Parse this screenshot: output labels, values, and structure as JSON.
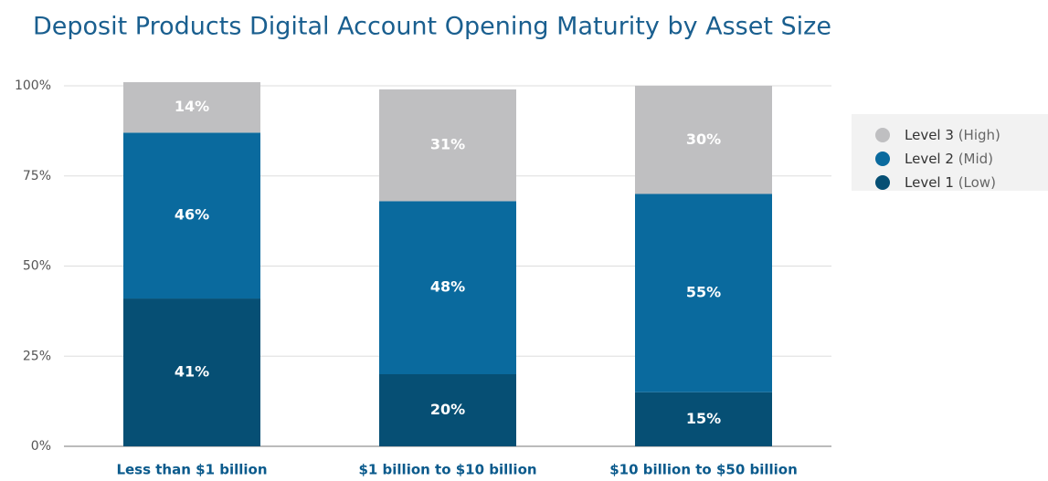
{
  "chart_data": {
    "type": "stacked_bar",
    "title": "Deposit Products Digital Account Opening Maturity by Asset Size",
    "categories": [
      "Less than $1 billion",
      "$1 billion to $10 billion",
      "$10 billion to $50 billion"
    ],
    "series": [
      {
        "name": "Level 1",
        "qualifier": "(Low)",
        "color": "#064f74",
        "values": [
          41,
          20,
          15
        ],
        "value_labels": [
          "41%",
          "20%",
          "15%"
        ]
      },
      {
        "name": "Level 2",
        "qualifier": "(Mid)",
        "color": "#0a6a9e",
        "values": [
          46,
          48,
          55
        ],
        "value_labels": [
          "46%",
          "48%",
          "55%"
        ]
      },
      {
        "name": "Level 3",
        "qualifier": "(High)",
        "color": "#bfbfc1",
        "values": [
          14,
          31,
          30
        ],
        "value_labels": [
          "14%",
          "31%",
          "30%"
        ]
      }
    ],
    "ylim": [
      0,
      100
    ],
    "yticks": [
      {
        "value": 0,
        "label": "0%"
      },
      {
        "value": 25,
        "label": "25%"
      },
      {
        "value": 50,
        "label": "50%"
      },
      {
        "value": 75,
        "label": "75%"
      },
      {
        "value": 100,
        "label": "100%"
      }
    ],
    "grid": true,
    "legend": "right"
  }
}
